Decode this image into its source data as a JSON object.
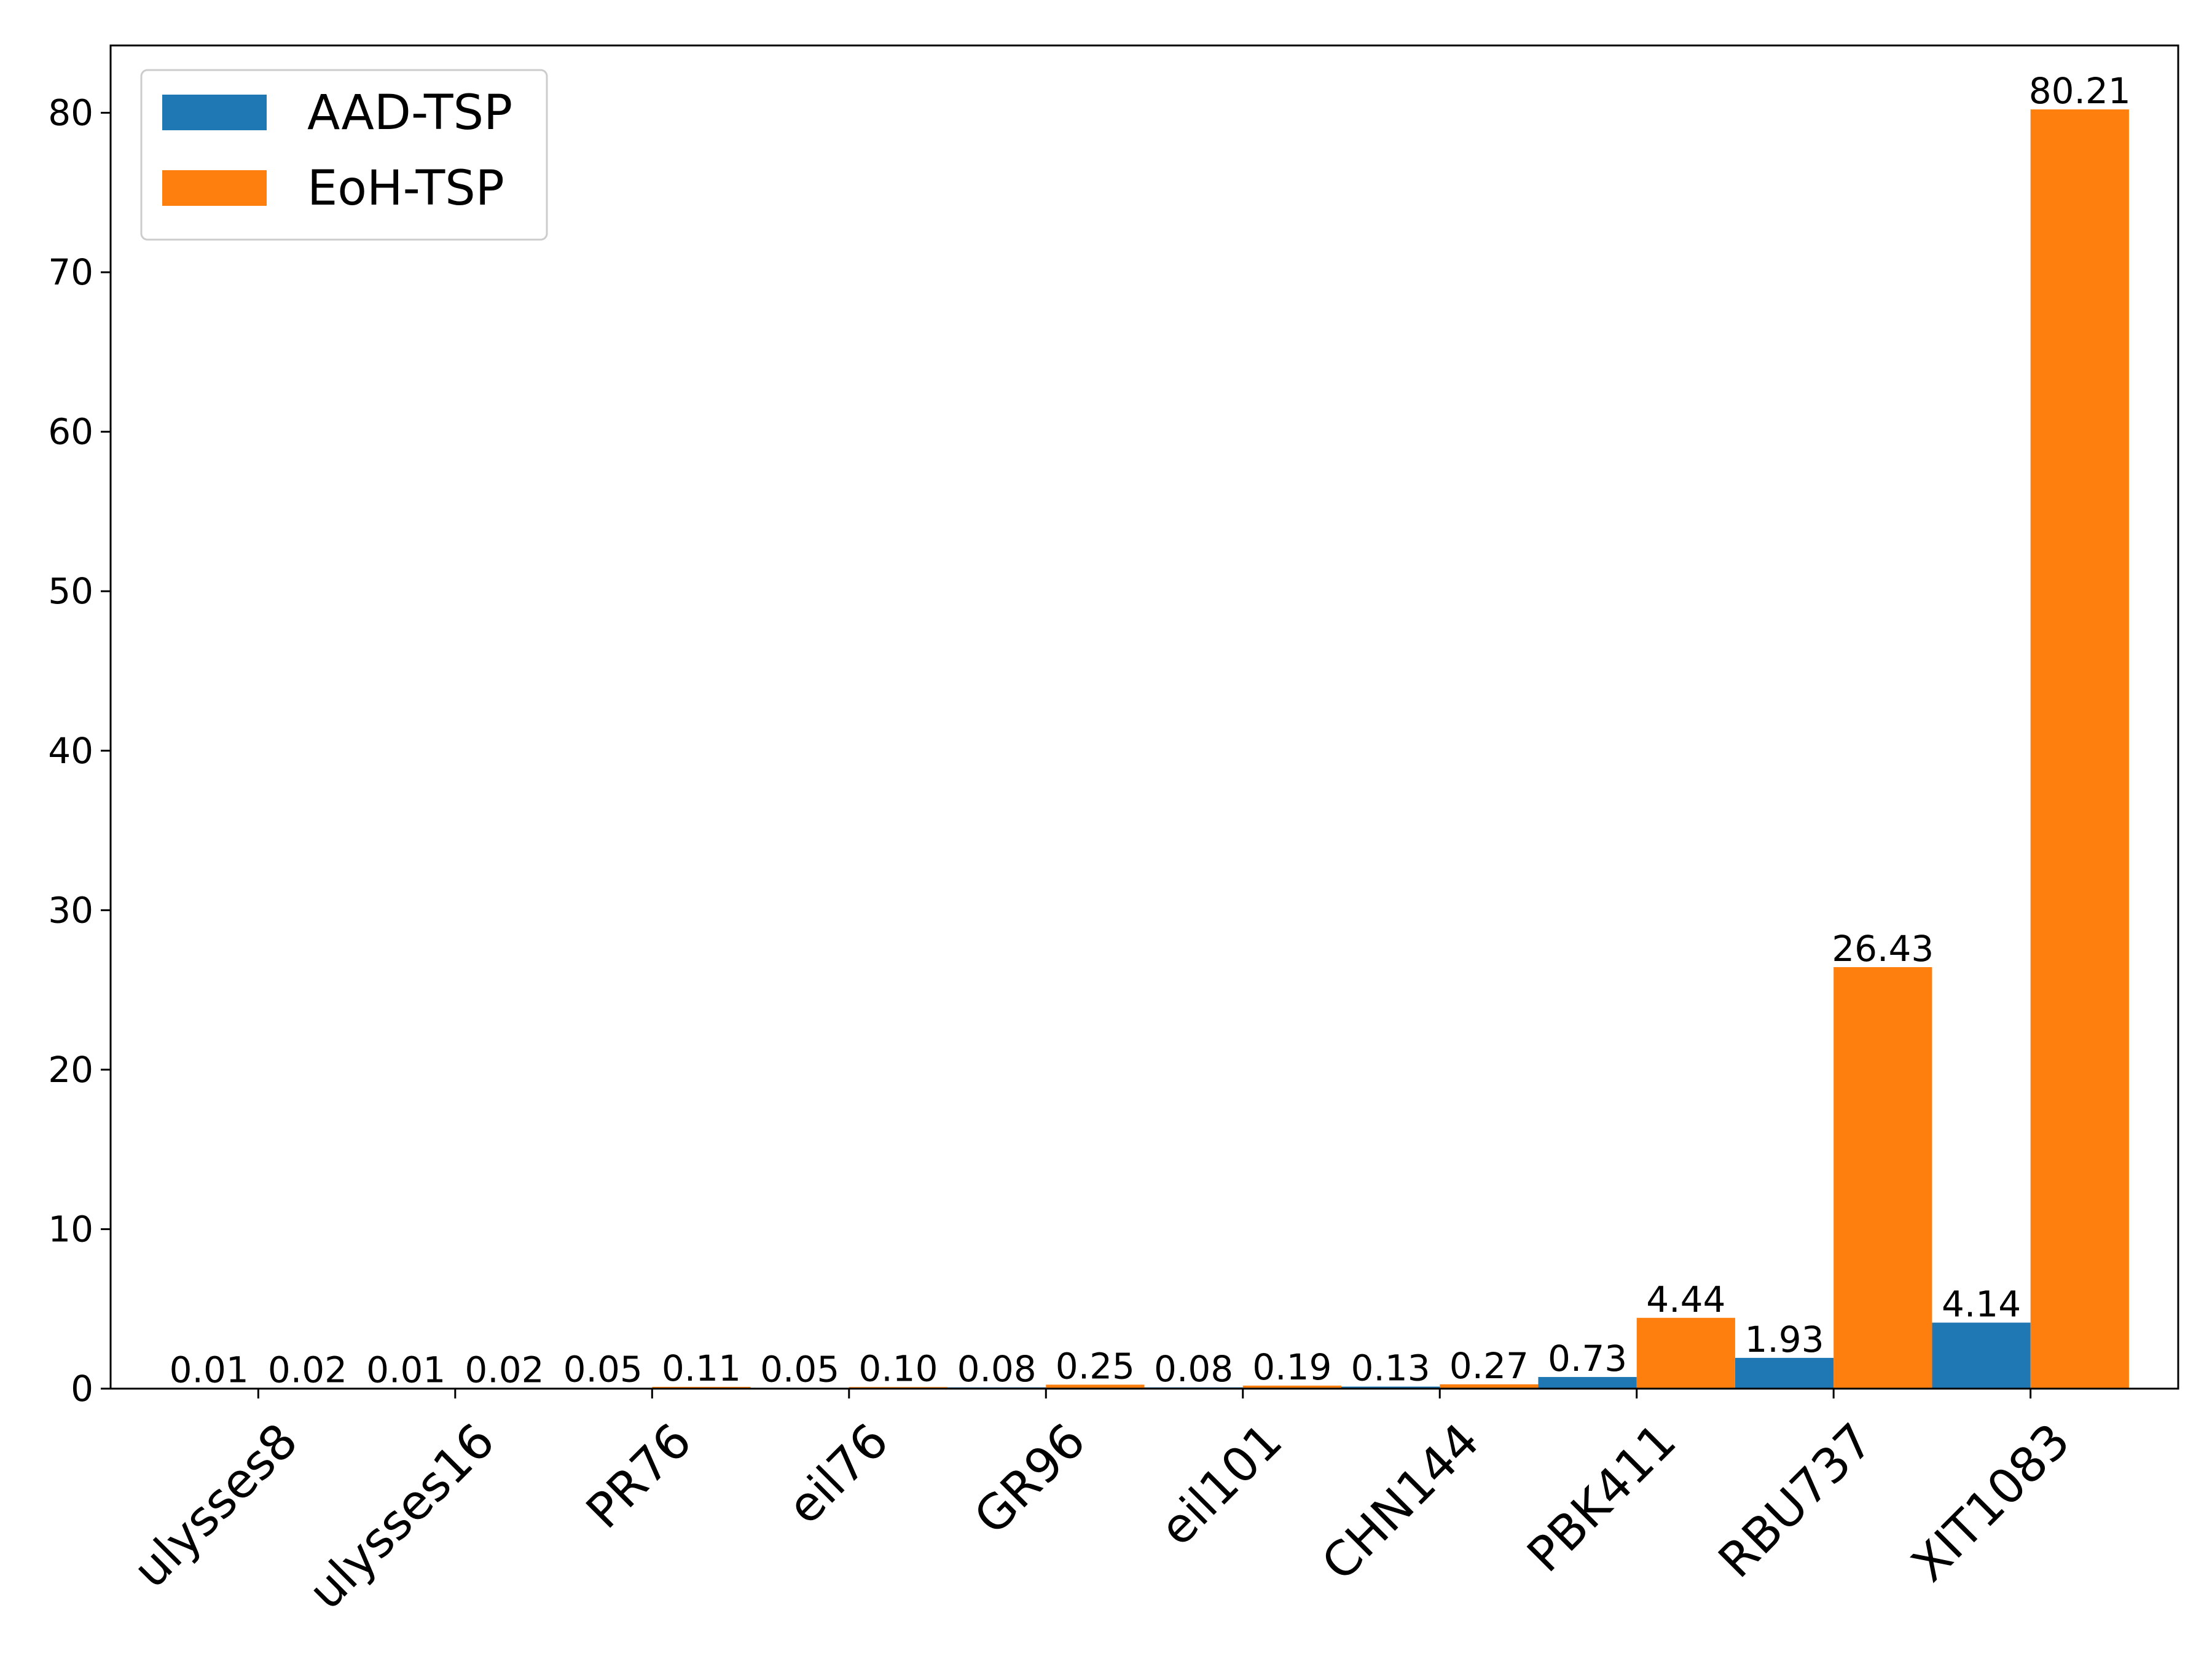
{
  "chart_data": {
    "type": "bar",
    "title": "",
    "xlabel": "",
    "ylabel": "",
    "categories": [
      "ulysses8",
      "ulysses16",
      "PR76",
      "eil76",
      "GR96",
      "eil101",
      "CHN144",
      "PBK411",
      "RBU737",
      "XIT1083"
    ],
    "series": [
      {
        "name": "AAD-TSP",
        "color": "#1f77b4",
        "values": [
          0.01,
          0.01,
          0.05,
          0.05,
          0.08,
          0.08,
          0.13,
          0.73,
          1.93,
          4.14
        ],
        "labels": [
          "0.01",
          "0.01",
          "0.05",
          "0.05",
          "0.08",
          "0.08",
          "0.13",
          "0.73",
          "1.93",
          "4.14"
        ]
      },
      {
        "name": "EoH-TSP",
        "color": "#ff7f0e",
        "values": [
          0.02,
          0.02,
          0.11,
          0.1,
          0.25,
          0.19,
          0.27,
          4.44,
          26.43,
          80.21
        ],
        "labels": [
          "0.02",
          "0.02",
          "0.11",
          "0.10",
          "0.25",
          "0.19",
          "0.27",
          "4.44",
          "26.43",
          "80.21"
        ]
      }
    ],
    "ylim": [
      0,
      84.22
    ],
    "yticks": [
      0,
      10,
      20,
      30,
      40,
      50,
      60,
      70,
      80
    ],
    "xtick_rotation_deg": 45,
    "grid": false,
    "legend": {
      "position": "top-left"
    }
  }
}
